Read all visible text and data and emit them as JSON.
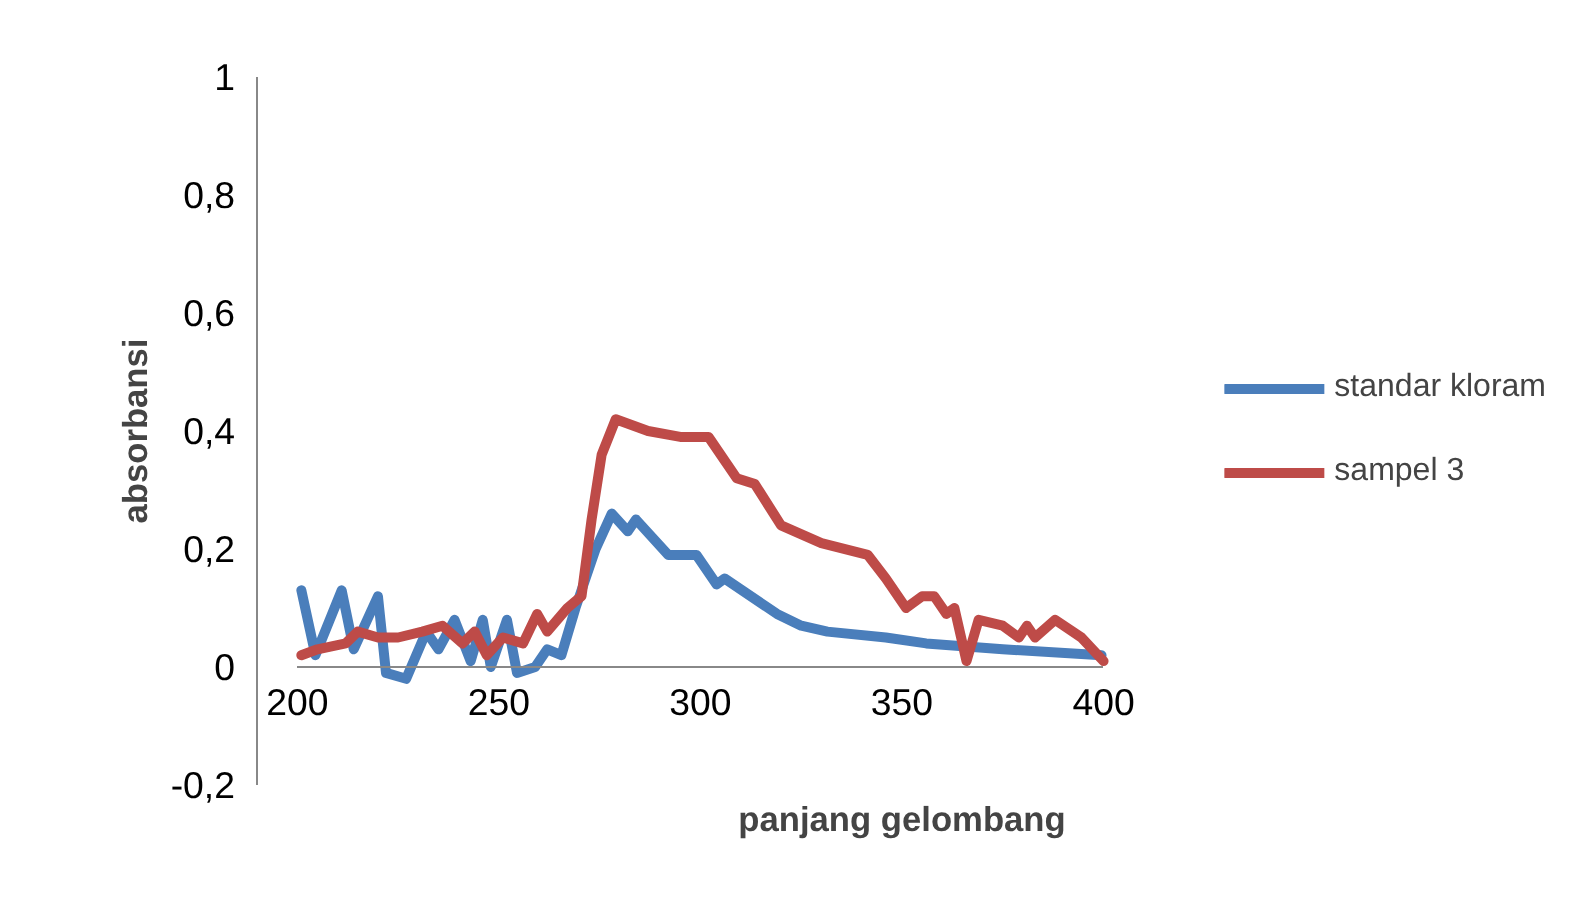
{
  "chart_data": {
    "type": "line",
    "xlabel": "panjang gelombang",
    "ylabel": "absorbansi",
    "xlim": [
      200,
      400
    ],
    "ylim": [
      -0.2,
      1
    ],
    "xticks": [
      200,
      250,
      300,
      350,
      400
    ],
    "yticks": [
      {
        "value": -0.2,
        "label": "-0,2"
      },
      0,
      {
        "value": 0.2,
        "label": "0,2"
      },
      {
        "value": 0.4,
        "label": "0,4"
      },
      {
        "value": 0.6,
        "label": "0,6"
      },
      {
        "value": 0.8,
        "label": "0,8"
      },
      1
    ],
    "grid": false,
    "legend": "right",
    "line_style": "solid",
    "marker": "none",
    "series": [
      {
        "name": "standar kloram",
        "color": "#4a7ebb",
        "x": [
          201,
          204.5,
          211,
          214,
          220,
          222,
          227,
          232,
          235,
          239,
          243,
          246,
          248,
          252,
          254.5,
          259,
          262,
          265.5,
          269,
          274,
          278,
          282,
          284,
          292,
          299,
          304,
          306,
          319,
          325,
          331.5,
          346,
          356,
          375,
          399.5
        ],
        "values": [
          0.13,
          0.02,
          0.13,
          0.03,
          0.12,
          -0.01,
          -0.02,
          0.06,
          0.03,
          0.08,
          0.01,
          0.08,
          0.0,
          0.08,
          -0.01,
          0.0,
          0.03,
          0.02,
          0.1,
          0.2,
          0.26,
          0.23,
          0.25,
          0.19,
          0.19,
          0.14,
          0.15,
          0.09,
          0.07,
          0.06,
          0.05,
          0.04,
          0.03,
          0.02
        ]
      },
      {
        "name": "sampel 3",
        "color": "#be4b48",
        "x": [
          201,
          205,
          212,
          215,
          220,
          225,
          231,
          236,
          241,
          244,
          247,
          251,
          256,
          259.5,
          262,
          267,
          270.5,
          273,
          275.5,
          279,
          287,
          295,
          302,
          309,
          313.5,
          320,
          330,
          341.5,
          346,
          351,
          355,
          358,
          361,
          363,
          366,
          369,
          375,
          379,
          381,
          383,
          388,
          394.5,
          400
        ],
        "values": [
          0.02,
          0.03,
          0.04,
          0.06,
          0.05,
          0.05,
          0.06,
          0.07,
          0.04,
          0.06,
          0.02,
          0.05,
          0.04,
          0.09,
          0.06,
          0.1,
          0.12,
          0.25,
          0.36,
          0.42,
          0.4,
          0.39,
          0.39,
          0.32,
          0.31,
          0.24,
          0.21,
          0.19,
          0.15,
          0.1,
          0.12,
          0.12,
          0.09,
          0.1,
          0.01,
          0.08,
          0.07,
          0.05,
          0.07,
          0.05,
          0.08,
          0.05,
          0.01
        ]
      }
    ]
  }
}
